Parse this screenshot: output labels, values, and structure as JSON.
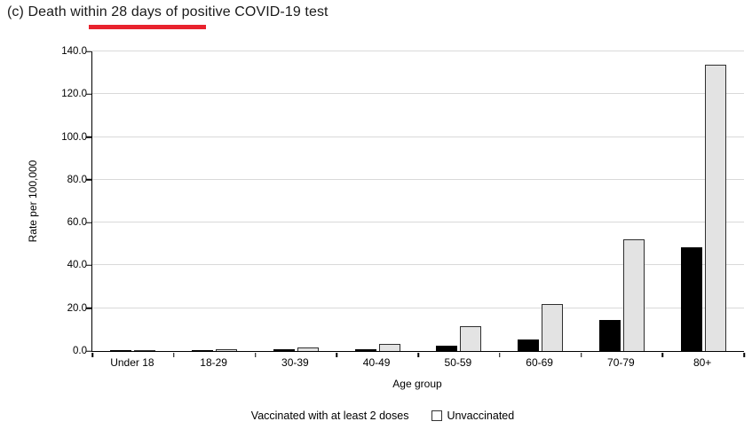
{
  "page": {
    "title": "(c) Death within 28 days of positive COVID-19 test",
    "title_underlined_phrase": "within 28 days"
  },
  "colors": {
    "underline_red": "#e8222d",
    "bar_vaccinated": "#000000",
    "bar_unvaccinated": "#e3e3e3",
    "bar_outline": "#2f2f2f",
    "gridline": "#d9d9d9",
    "axis": "#000000"
  },
  "chart_data": {
    "type": "bar",
    "title": "(c) Death within 28 days of positive COVID-19 test",
    "categories": [
      "Under 18",
      "18-29",
      "30-39",
      "40-49",
      "50-59",
      "60-69",
      "70-79",
      "80+"
    ],
    "series": [
      {
        "name": "Vaccinated with at least 2 doses",
        "color": "#000000",
        "values": [
          0.1,
          0.2,
          0.3,
          0.6,
          1.9,
          5.0,
          13.9,
          48.2
        ]
      },
      {
        "name": "Unvaccinated",
        "color": "#e3e3e3",
        "values": [
          0.1,
          0.4,
          1.2,
          3.0,
          11.3,
          21.4,
          51.6,
          133.3
        ]
      }
    ],
    "xlabel": "Age group",
    "ylabel": "Rate per 100,000",
    "ylim": [
      0,
      140
    ],
    "yticks": [
      0,
      20,
      40,
      60,
      80,
      100,
      120,
      140
    ],
    "ytick_labels": [
      "0.0",
      "20.0",
      "40.0",
      "60.0",
      "80.0",
      "100.0",
      "120.0",
      "140.0"
    ],
    "grid": "horizontal",
    "legend_position": "bottom"
  }
}
